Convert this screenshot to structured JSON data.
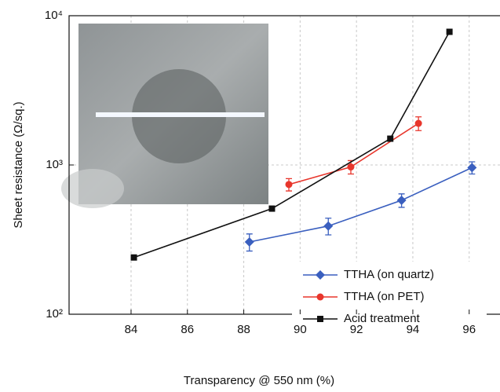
{
  "chart_data": {
    "type": "line",
    "xlabel": "Transparency @ 550 nm (%)",
    "ylabel": "Sheet resistance (Ω/sq.)",
    "xlim": [
      81.8,
      97.4
    ],
    "xticks": [
      84,
      86,
      88,
      90,
      92,
      94,
      96
    ],
    "ylim": [
      100,
      10000
    ],
    "yticks": [
      {
        "value": 100,
        "label": "10²"
      },
      {
        "value": 1000,
        "label": "10³"
      },
      {
        "value": 10000,
        "label": "10⁴"
      }
    ],
    "ylog": true,
    "grid": true,
    "legend": "lower right",
    "series": [
      {
        "name": "TTHA (on quartz)",
        "color": "#3a5fbf",
        "marker": "diamond",
        "x": [
          88.2,
          91.0,
          93.6,
          96.1
        ],
        "values": [
          305,
          390,
          580,
          960
        ],
        "errors": [
          40,
          50,
          60,
          90
        ]
      },
      {
        "name": "TTHA (on PET)",
        "color": "#e8362c",
        "marker": "circle",
        "x": [
          89.6,
          91.8,
          94.2
        ],
        "values": [
          740,
          970,
          1900
        ],
        "errors": [
          70,
          100,
          200
        ]
      },
      {
        "name": "Acid treatment",
        "color": "#111111",
        "marker": "square",
        "x": [
          84.1,
          89.0,
          93.2,
          95.3
        ],
        "values": [
          240,
          510,
          1500,
          7800
        ]
      }
    ]
  }
}
